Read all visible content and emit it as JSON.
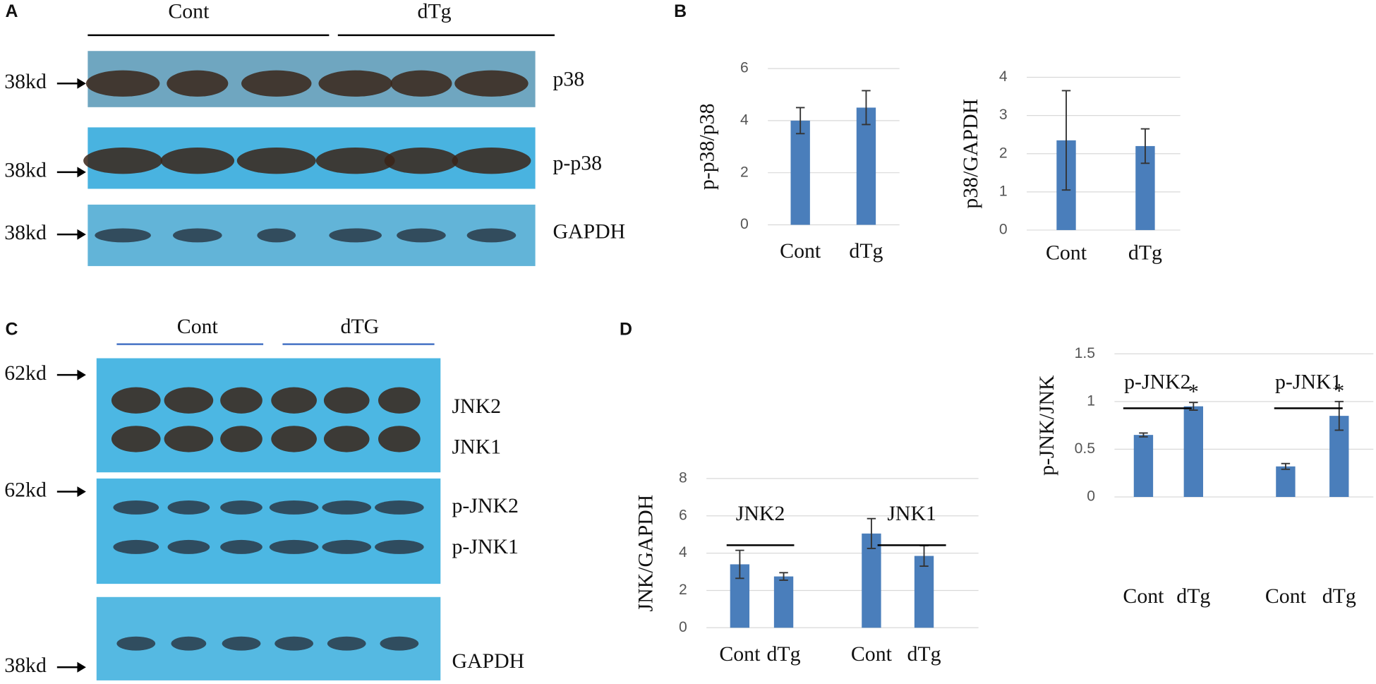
{
  "figure": {
    "panel_labels": [
      "A",
      "B",
      "C",
      "D"
    ],
    "blot_a": {
      "groups": [
        "Cont",
        "dTg"
      ],
      "markers": [
        "38kd",
        "38kd",
        "38kd"
      ],
      "proteins": [
        "p38",
        "p-p38",
        "GAPDH"
      ]
    },
    "blot_c": {
      "groups": [
        "Cont",
        "dTG"
      ],
      "markers": [
        "62kd",
        "62kd",
        "38kd"
      ],
      "proteins": [
        "JNK2",
        "JNK1",
        "p-JNK2",
        "p-JNK1",
        "GAPDH"
      ]
    }
  },
  "chart_data": [
    {
      "type": "bar",
      "y_label": "p-p38/p38",
      "categories": [
        "Cont",
        "dTg"
      ],
      "series": [
        {
          "color": "#4a7ebb",
          "values": [
            4.0,
            4.5
          ],
          "errors": [
            0.5,
            0.65
          ]
        }
      ],
      "ylim": [
        0,
        6
      ],
      "yticks": [
        0,
        2,
        4,
        6
      ],
      "grid": true
    },
    {
      "type": "bar",
      "y_label": "p38/GAPDH",
      "categories": [
        "Cont",
        "dTg"
      ],
      "series": [
        {
          "color": "#4a7ebb",
          "values": [
            2.35,
            2.2
          ],
          "errors": [
            1.3,
            0.45
          ]
        }
      ],
      "ylim": [
        0,
        4
      ],
      "yticks": [
        0,
        1,
        2,
        3,
        4
      ],
      "grid": true
    },
    {
      "type": "bar",
      "y_label": "JNK/GAPDH",
      "categories": [
        "Cont",
        "dTg",
        "Cont",
        "dTg"
      ],
      "groups": [
        "JNK2",
        "JNK1"
      ],
      "series": [
        {
          "color": "#4a7ebb",
          "values": [
            3.4,
            2.75,
            5.05,
            3.85
          ],
          "errors": [
            0.75,
            0.2,
            0.8,
            0.55
          ]
        }
      ],
      "ylim": [
        0,
        8
      ],
      "yticks": [
        0,
        2,
        4,
        6,
        8
      ],
      "grid": true
    },
    {
      "type": "bar",
      "y_label": "p-JNK/JNK",
      "categories": [
        "Cont",
        "dTg",
        "Cont",
        "dTg"
      ],
      "groups": [
        "p-JNK2",
        "p-JNK1"
      ],
      "series": [
        {
          "color": "#4a7ebb",
          "values": [
            0.65,
            0.95,
            0.32,
            0.85
          ],
          "errors": [
            0.02,
            0.04,
            0.03,
            0.15
          ]
        }
      ],
      "significance": [
        null,
        "*",
        null,
        "*"
      ],
      "ylim": [
        0,
        1.5
      ],
      "yticks": [
        0,
        0.5,
        1,
        1.5
      ],
      "grid": true
    }
  ]
}
